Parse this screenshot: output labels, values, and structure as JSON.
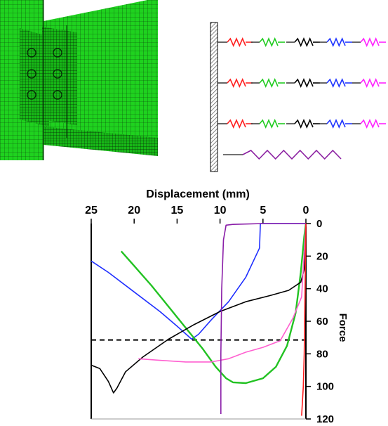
{
  "figure_parts": {
    "fe_model": {
      "icon": "fe-mesh-model-icon",
      "mesh_color": "#1fd21f",
      "mesh_line_color": "#0a3d0a"
    },
    "spring_model": {
      "icon": "spring-model-icon",
      "support": "hatched-wall",
      "rows": 3,
      "spring_colors": [
        "#ff2020",
        "#22cc22",
        "#000000",
        "#1f35ff",
        "#ff22ff"
      ],
      "extra_spring_color": "#8a1ea0"
    }
  },
  "chart_data": {
    "type": "line",
    "title": "",
    "xlabel": "Displacement (mm)",
    "ylabel": "Force",
    "x_axis_position": "top",
    "y_axis_position": "right",
    "x_reversed": true,
    "y_reversed": true,
    "xlim": [
      25,
      0
    ],
    "ylim": [
      0,
      120
    ],
    "x_ticks": [
      "25",
      "20",
      "15",
      "10",
      "5",
      "0"
    ],
    "y_ticks": [
      "0",
      "20",
      "40",
      "60",
      "80",
      "100",
      "120"
    ],
    "grid": false,
    "legend": "none",
    "reference_line": {
      "y": 71.5,
      "style": "dashed",
      "color": "#000000"
    },
    "series": [
      {
        "color": "#1f2fff",
        "points": [
          [
            25,
            23
          ],
          [
            23,
            30
          ],
          [
            20,
            42
          ],
          [
            17,
            54
          ],
          [
            15,
            63
          ],
          [
            13.3,
            71
          ],
          [
            12.5,
            68
          ],
          [
            11,
            59
          ],
          [
            9,
            48
          ],
          [
            7,
            33
          ],
          [
            5.4,
            15
          ],
          [
            5.3,
            0
          ],
          [
            0,
            0
          ]
        ]
      },
      {
        "color": "#22c222",
        "points": [
          [
            21.5,
            17
          ],
          [
            20,
            26
          ],
          [
            18,
            38
          ],
          [
            16,
            51
          ],
          [
            14,
            64
          ],
          [
            12,
            77
          ],
          [
            10.5,
            88
          ],
          [
            9.3,
            95
          ],
          [
            8.5,
            97.5
          ],
          [
            7,
            98
          ],
          [
            5,
            95
          ],
          [
            3.5,
            88
          ],
          [
            2.2,
            75
          ],
          [
            1.2,
            55
          ],
          [
            0.6,
            30
          ],
          [
            0.2,
            8
          ],
          [
            0,
            0
          ]
        ]
      },
      {
        "color": "#000000",
        "points": [
          [
            25,
            87
          ],
          [
            24,
            89
          ],
          [
            23,
            97
          ],
          [
            22.4,
            104
          ],
          [
            22,
            101
          ],
          [
            21,
            91
          ],
          [
            19,
            82
          ],
          [
            16,
            71
          ],
          [
            13,
            62
          ],
          [
            10,
            54
          ],
          [
            7,
            48
          ],
          [
            4,
            44
          ],
          [
            2,
            41
          ],
          [
            0.6,
            36
          ],
          [
            0.2,
            28
          ],
          [
            0,
            0
          ]
        ]
      },
      {
        "color": "#ff60d0",
        "points": [
          [
            19.5,
            83
          ],
          [
            17,
            84
          ],
          [
            14,
            85
          ],
          [
            11,
            85
          ],
          [
            9,
            83
          ],
          [
            7,
            79
          ],
          [
            5,
            76
          ],
          [
            3,
            72
          ],
          [
            1.5,
            58
          ],
          [
            0.5,
            45
          ],
          [
            0,
            0
          ]
        ]
      },
      {
        "color": "#8a1ea8",
        "points": [
          [
            9.9,
            117
          ],
          [
            9.9,
            80
          ],
          [
            9.8,
            40
          ],
          [
            9.6,
            10
          ],
          [
            9.3,
            1
          ],
          [
            8.5,
            0.5
          ],
          [
            5,
            0
          ],
          [
            0,
            0
          ]
        ]
      },
      {
        "color": "#ff1a1a",
        "points": [
          [
            0,
            0
          ],
          [
            0.1,
            40
          ],
          [
            0.2,
            80
          ],
          [
            0.3,
            100
          ],
          [
            0.5,
            118
          ]
        ]
      }
    ]
  }
}
